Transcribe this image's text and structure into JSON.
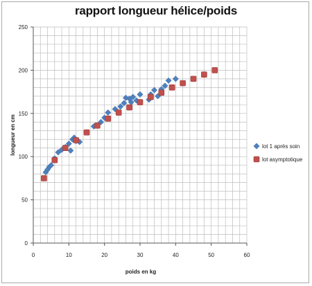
{
  "chart_data": {
    "type": "scatter",
    "title": "rapport longueur hélice/poids",
    "xlabel": "poids en kg",
    "ylabel": "longueur en cm",
    "xlim": [
      0,
      60
    ],
    "ylim": [
      0,
      250
    ],
    "x_ticks": [
      0,
      10,
      20,
      30,
      40,
      50,
      60
    ],
    "y_ticks": [
      0,
      50,
      100,
      150,
      200,
      250
    ],
    "x_minor_step": 2,
    "y_minor_step": 10,
    "grid": true,
    "legend_position": "right",
    "series": [
      {
        "name": "lot 1 après soin",
        "marker": "diamond",
        "color": "#4f81bd",
        "points": [
          [
            3.5,
            82
          ],
          [
            4.0,
            85
          ],
          [
            4.5,
            88
          ],
          [
            5.0,
            90
          ],
          [
            6.0,
            98
          ],
          [
            7.0,
            105
          ],
          [
            8.0,
            108
          ],
          [
            9.0,
            111
          ],
          [
            10.0,
            115
          ],
          [
            10.5,
            107
          ],
          [
            11.0,
            120
          ],
          [
            11.5,
            122
          ],
          [
            12.0,
            118
          ],
          [
            13.0,
            117
          ],
          [
            17.0,
            135
          ],
          [
            19.0,
            140
          ],
          [
            20.0,
            145
          ],
          [
            21.0,
            151
          ],
          [
            23.0,
            155
          ],
          [
            24.5,
            158
          ],
          [
            25.5,
            162
          ],
          [
            26.0,
            168
          ],
          [
            27.0,
            167
          ],
          [
            27.5,
            163
          ],
          [
            28.0,
            169
          ],
          [
            29.0,
            165
          ],
          [
            30.0,
            172
          ],
          [
            32.5,
            166
          ],
          [
            33.0,
            172
          ],
          [
            34.0,
            177
          ],
          [
            35.0,
            170
          ],
          [
            36.0,
            178
          ],
          [
            37.0,
            182
          ],
          [
            38.0,
            188
          ],
          [
            40.0,
            190
          ]
        ]
      },
      {
        "name": "lot asymptotique",
        "marker": "square",
        "color": "#c0504d",
        "points": [
          [
            3.0,
            75
          ],
          [
            6.0,
            96
          ],
          [
            9.0,
            110
          ],
          [
            12.0,
            119
          ],
          [
            15.0,
            128
          ],
          [
            18.0,
            136
          ],
          [
            21.0,
            144
          ],
          [
            24.0,
            151
          ],
          [
            27.0,
            157
          ],
          [
            30.0,
            163
          ],
          [
            33.0,
            169
          ],
          [
            36.0,
            174
          ],
          [
            39.0,
            180
          ],
          [
            42.0,
            185
          ],
          [
            45.0,
            190
          ],
          [
            48.0,
            195
          ],
          [
            51.0,
            200
          ]
        ]
      }
    ]
  }
}
